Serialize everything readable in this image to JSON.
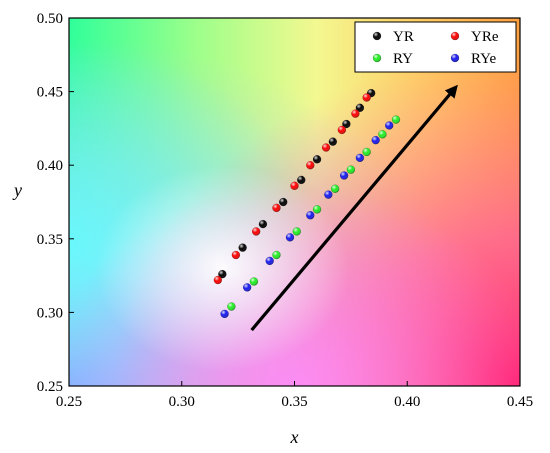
{
  "chart_data": {
    "type": "scatter",
    "xlabel": "x",
    "ylabel": "y",
    "xlim": [
      0.25,
      0.45
    ],
    "ylim": [
      0.25,
      0.5
    ],
    "x_ticks": [
      "0.25",
      "0.30",
      "0.35",
      "0.40",
      "0.45"
    ],
    "y_ticks": [
      "0.25",
      "0.30",
      "0.35",
      "0.40",
      "0.45",
      "0.50"
    ],
    "background": "CIE chromaticity color gradient",
    "legend_position": "top-right",
    "series": [
      {
        "name": "YR",
        "color": "#000000",
        "x": [
          0.318,
          0.327,
          0.336,
          0.345,
          0.353,
          0.36,
          0.367,
          0.373,
          0.379,
          0.384
        ],
        "y": [
          0.326,
          0.344,
          0.36,
          0.375,
          0.39,
          0.404,
          0.416,
          0.428,
          0.439,
          0.449
        ]
      },
      {
        "name": "YRe",
        "color": "#ff0000",
        "x": [
          0.316,
          0.324,
          0.333,
          0.342,
          0.35,
          0.357,
          0.364,
          0.371,
          0.377,
          0.382
        ],
        "y": [
          0.322,
          0.339,
          0.355,
          0.371,
          0.386,
          0.4,
          0.412,
          0.424,
          0.435,
          0.446
        ]
      },
      {
        "name": "RY",
        "color": "#22ee22",
        "x": [
          0.322,
          0.332,
          0.342,
          0.351,
          0.36,
          0.368,
          0.375,
          0.382,
          0.389,
          0.395
        ],
        "y": [
          0.304,
          0.321,
          0.339,
          0.355,
          0.37,
          0.384,
          0.397,
          0.409,
          0.421,
          0.431
        ]
      },
      {
        "name": "RYe",
        "color": "#1a1aee",
        "x": [
          0.319,
          0.329,
          0.339,
          0.348,
          0.357,
          0.365,
          0.372,
          0.379,
          0.386,
          0.392
        ],
        "y": [
          0.299,
          0.317,
          0.335,
          0.351,
          0.366,
          0.38,
          0.393,
          0.405,
          0.417,
          0.427
        ]
      }
    ],
    "arrow": {
      "from": [
        0.331,
        0.288
      ],
      "to": [
        0.421,
        0.452
      ]
    }
  }
}
